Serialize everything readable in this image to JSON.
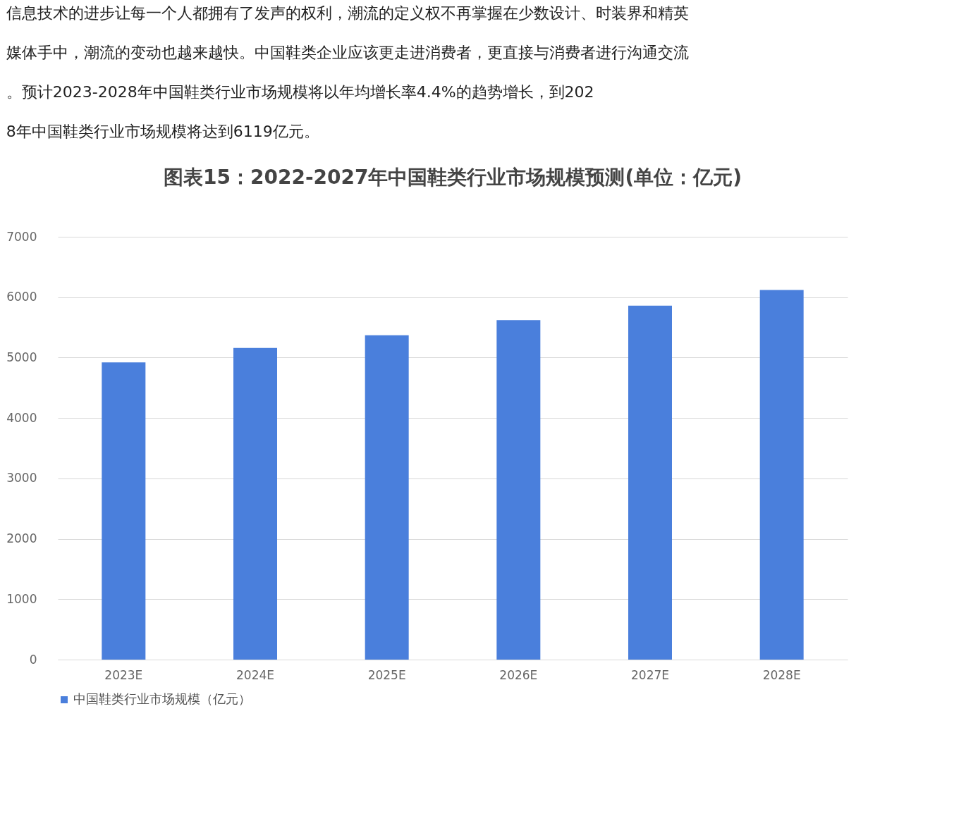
{
  "chart_data": {
    "type": "bar",
    "title": "图表15：2022-2027年中国鞋类行业市场规模预测(单位：亿元)",
    "annotations": [
      "信息技术的进步让每一个人都拥有了发声的权利，潮流的定义权不再掌握在少数设计、时装界和精英媒体手中，潮流的变动也越来越快。中国鞋类企业应该更走进消费者，更直接与消费者进行沟通交流。预计2023-2028年中国鞋类行业市场规模将以年均增长率4.4%的趋势增长，到2028年中国鞋类行业市场规模将达到6119亿元。"
    ],
    "categories": [
      "2023E",
      "2024E",
      "2025E",
      "2026E",
      "2027E",
      "2028E"
    ],
    "series": [
      {
        "name": "中国鞋类行业市场规模（亿元）",
        "color": "#4a7fdc",
        "values": [
          4920,
          5160,
          5370,
          5620,
          5860,
          6120
        ]
      }
    ],
    "ylim": [
      0,
      7000
    ],
    "yticks": [
      0,
      1000,
      2000,
      3000,
      4000,
      5000,
      6000,
      7000
    ],
    "grid": "y",
    "legend": "bottom"
  }
}
